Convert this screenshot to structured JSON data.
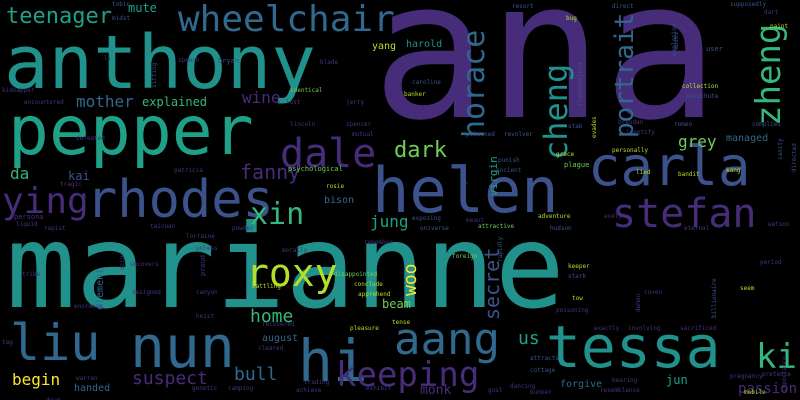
{
  "background": "#000000",
  "palette": {
    "purple_dark": "#472c7a",
    "purple": "#46337e",
    "indigo": "#3b528b",
    "blue": "#31688e",
    "teal": "#21918c",
    "green_teal": "#1fa187",
    "green": "#35b779",
    "light_green": "#6ece58",
    "yellow_green": "#b5de2b",
    "yellow": "#fde725"
  },
  "words": {
    "ana": "ana",
    "marianne": "marianne",
    "anthony": "anthony",
    "pepper": "pepper",
    "helen": "helen",
    "tessa": "tessa",
    "rhodes": "rhodes",
    "carla": "carla",
    "hi": "hi",
    "nun": "nun",
    "roxy": "roxy",
    "stefan": "stefan",
    "dale": "dale",
    "aang": "aang",
    "keeping": "keeping",
    "wheelchair": "wheelchair",
    "liu": "liu",
    "ying": "ying",
    "xin": "xin",
    "horace": "horace",
    "cheng": "cheng",
    "zheng": "zheng",
    "teenager": "teenager",
    "portrait": "portrait",
    "ki": "ki",
    "dark": "dark",
    "fanny": "fanny",
    "secret": "secret",
    "suspect": "suspect",
    "bull": "bull",
    "home": "home",
    "mother": "mother",
    "woo": "woo",
    "jung": "jung",
    "wine": "wine",
    "us": "us",
    "grey": "grey",
    "begin": "begin",
    "da": "da",
    "kai": "kai",
    "explained": "explained",
    "mute": "mute",
    "beam": "beam",
    "passion": "passion",
    "monk": "monk",
    "jun": "jun",
    "managed": "managed",
    "bison": "bison",
    "harold": "harold",
    "yang": "yang",
    "element": "element",
    "handed": "handed",
    "august": "august",
    "forgive": "forgive",
    "virgin": "virgin",
    "tobin": "tobin",
    "speech": "speech",
    "bryan": "bryan",
    "resort": "resort",
    "direct": "direct",
    "supposedly": "supposedly",
    "dart": "dart",
    "kidnapper": "kidnapper",
    "encountered": "encountered",
    "identical": "identical",
    "bombing": "bombing",
    "caroline": "caroline",
    "banker": "banker",
    "collection": "collection",
    "parachute": "parachute",
    "poisoned": "poisoned",
    "revolver": "revolver",
    "personally": "personally",
    "romeo": "romeo",
    "spencer": "spencer",
    "lincoln": "lincoln",
    "jerry": "jerry",
    "mutual": "mutual",
    "patricia": "patricia",
    "psychological": "psychological",
    "rosie": "rosie",
    "persona": "persona",
    "tailuan": "taicuan",
    "lorraine": "lorraine",
    "exposing": "exposing",
    "universe": "universe",
    "adventure": "adventure",
    "attractive": "attractive",
    "foreign": "foreign",
    "hudson": "hudson",
    "eternal": "eternal",
    "plague": "plague",
    "grace": "grace",
    "evelyn": "evelyn",
    "disappointed": "disappointed",
    "conclude": "conclude",
    "apprehend": "apprehend",
    "keeper": "keeper",
    "stark": "stark",
    "tow": "tow",
    "period": "period",
    "coven": "coven",
    "billionaire": "billionaire",
    "seem": "seem",
    "recovered": "recovered",
    "heist": "heist",
    "battling": "battling",
    "designed": "designed",
    "uncovers": "uncovers",
    "tribe": "tribe",
    "enormous": "enormous",
    "canyon": "canyon",
    "cleared": "cleared",
    "trading": "trading",
    "achieve": "achieve",
    "exhibit": "exhibit",
    "bunker": "bunker",
    "goal": "goal",
    "dancing": "dancing",
    "resemblance": "resemblance",
    "bearing": "bearing",
    "pregnancy": "pregnancy",
    "mobile": "mobile",
    "genetic": "genetic",
    "camping": "camping",
    "warren": "warren",
    "involving": "involving",
    "sacrificed": "sacrificed",
    "exactly": "exactly",
    "pleasure": "pleasure",
    "tense": "tense",
    "attracts": "attracts",
    "cottage": "cottage",
    "rapidly": "rapidly",
    "poisoning": "poisoning",
    "bandit": "bandit",
    "user": "user",
    "tag": "tag",
    "doug": "doug",
    "tragic": "tragic",
    "defeated": "defeated",
    "rapist": "rapist",
    "liquid": "liquid",
    "powder": "powder",
    "unless": "unless",
    "proud": "proud",
    "occur": "occur",
    "remember": "remember",
    "meant": "meant",
    "targeted": "targeted",
    "lied": "lied",
    "kang": "kang",
    "watson": "watson",
    "identify": "identify",
    "pretense": "pretense",
    "directed": "directed",
    "bug": "bug",
    "paint": "paint",
    "frankenstein": "frankenstein",
    "brendan": "brendan",
    "midst": "midst",
    "blade": "blade",
    "sitting": "sitting",
    "li": "li",
    "lost": "lost",
    "explosion": "explosion",
    "demon": "demon",
    "importance": "importance",
    "stab": "stab",
    "complies": "complies",
    "sanity": "sanity",
    "evades": "evades",
    "punish": "punish",
    "ancient": "ancient",
    "morally": "morally",
    "moves": "moves"
  }
}
